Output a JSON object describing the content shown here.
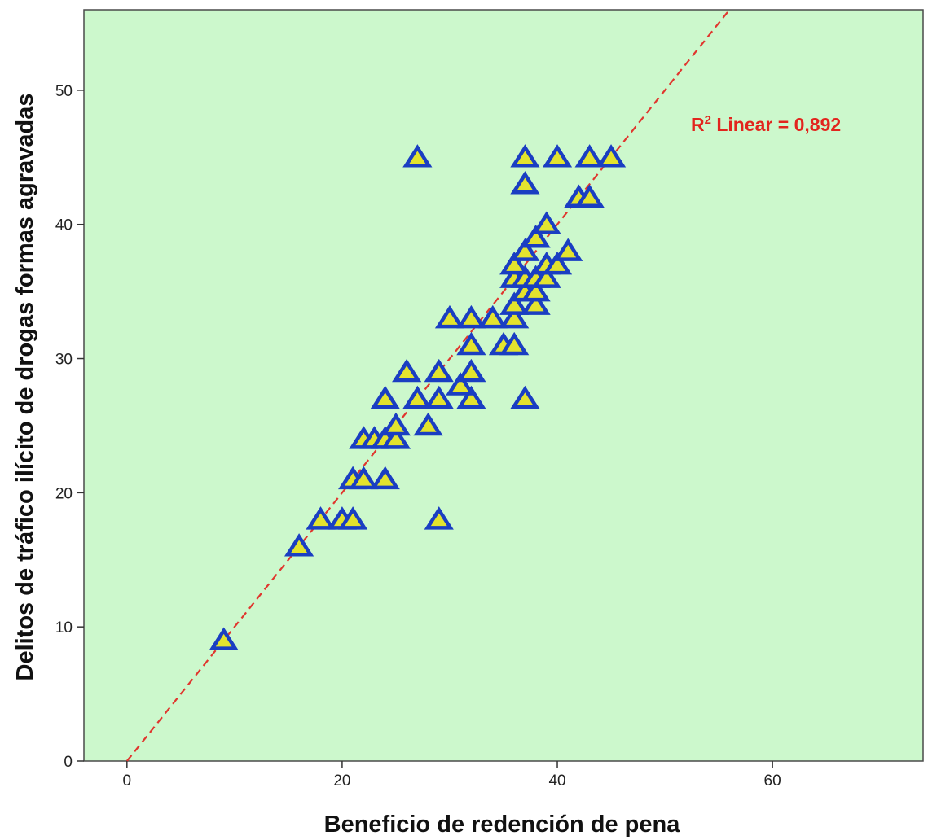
{
  "chart_data": {
    "type": "scatter",
    "xlabel": "Beneficio de redención de pena",
    "ylabel": "Delitos de tráfico ilícito de drogas formas agravadas",
    "xlim": [
      -4,
      74
    ],
    "ylim": [
      0,
      56
    ],
    "xticks": [
      0,
      20,
      40,
      60
    ],
    "yticks": [
      0,
      10,
      20,
      30,
      40,
      50
    ],
    "grid": false,
    "colors": {
      "plot_background": "#ccf8cc",
      "marker_fill": "#e3e32e",
      "marker_edge": "#1a3ec2",
      "fit_line": "#e0362e",
      "annotation": "#e2251e"
    },
    "marker": "triangle",
    "series": [
      {
        "points": [
          [
            9,
            9
          ],
          [
            16,
            16
          ],
          [
            18,
            18
          ],
          [
            20,
            18
          ],
          [
            21,
            18
          ],
          [
            29,
            18
          ],
          [
            21,
            21
          ],
          [
            22,
            21
          ],
          [
            24,
            21
          ],
          [
            22,
            24
          ],
          [
            23,
            24
          ],
          [
            24,
            24
          ],
          [
            25,
            24
          ],
          [
            25,
            25
          ],
          [
            28,
            25
          ],
          [
            24,
            27
          ],
          [
            27,
            27
          ],
          [
            29,
            27
          ],
          [
            32,
            27
          ],
          [
            37,
            27
          ],
          [
            31,
            28
          ],
          [
            26,
            29
          ],
          [
            29,
            29
          ],
          [
            32,
            29
          ],
          [
            32,
            31
          ],
          [
            35,
            31
          ],
          [
            36,
            31
          ],
          [
            30,
            33
          ],
          [
            32,
            33
          ],
          [
            34,
            33
          ],
          [
            36,
            33
          ],
          [
            36,
            34
          ],
          [
            38,
            34
          ],
          [
            37,
            35
          ],
          [
            38,
            35
          ],
          [
            36,
            36
          ],
          [
            37,
            36
          ],
          [
            38,
            36
          ],
          [
            39,
            36
          ],
          [
            36,
            37
          ],
          [
            39,
            37
          ],
          [
            40,
            37
          ],
          [
            37,
            38
          ],
          [
            41,
            38
          ],
          [
            38,
            39
          ],
          [
            39,
            40
          ],
          [
            42,
            42
          ],
          [
            43,
            42
          ],
          [
            37,
            43
          ],
          [
            27,
            45
          ],
          [
            37,
            45
          ],
          [
            40,
            45
          ],
          [
            43,
            45
          ],
          [
            45,
            45
          ]
        ]
      }
    ],
    "fit_line": {
      "intercept": 0,
      "slope": 1,
      "annotation": {
        "prefix": "R",
        "superscript": "2",
        "text": " Linear = 0,892"
      }
    }
  }
}
